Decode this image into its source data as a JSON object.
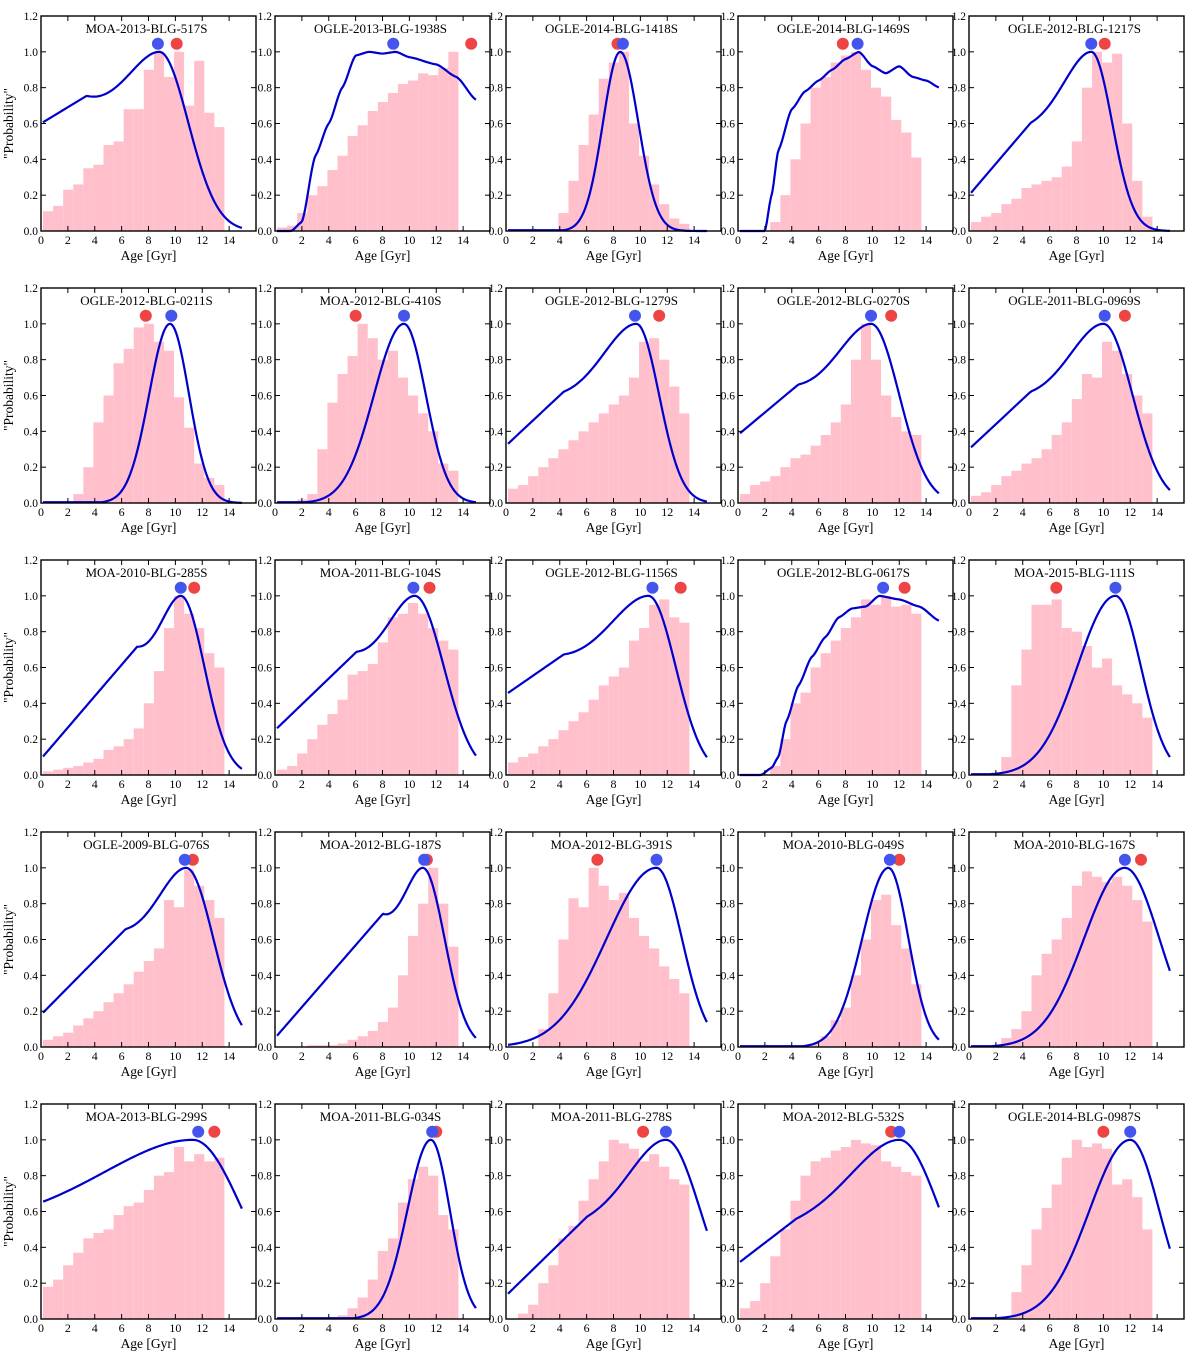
{
  "chart_data": {
    "type": "histogram-with-curve",
    "xlabel": "Age [Gyr]",
    "ylabel": "\"Probability\"",
    "xlim": [
      0,
      16
    ],
    "ylim": [
      0,
      1.2
    ],
    "xticks": [
      0,
      2,
      4,
      6,
      8,
      10,
      12,
      14
    ],
    "yticks": [
      0.0,
      0.2,
      0.4,
      0.6,
      0.8,
      1.0,
      1.2
    ],
    "bin_width": 0.75,
    "colors": {
      "histogram": "#ffc0cb",
      "curve": "#0000cd",
      "blue_marker": "#4455ee",
      "red_marker": "#ee4444"
    },
    "panels": [
      {
        "title": "MOA-2013-BLG-517S",
        "type": "skew",
        "peak": 8.8,
        "wl": 6,
        "wr": 3.2,
        "base": 0.0,
        "lk": 0.6,
        "hist": [
          0.11,
          0.14,
          0.23,
          0.26,
          0.35,
          0.37,
          0.48,
          0.5,
          0.68,
          0.68,
          0.9,
          1.0,
          0.86,
          1.0,
          0.7,
          0.95,
          0.66,
          0.58
        ],
        "blue": 8.7,
        "red": 10.1
      },
      {
        "title": "OGLE-2013-BLG-1938S",
        "type": "plateau",
        "p": [
          [
            1.2,
            0
          ],
          [
            2,
            0.05
          ],
          [
            3,
            0.42
          ],
          [
            4,
            0.6
          ],
          [
            5,
            0.8
          ],
          [
            6,
            0.98
          ],
          [
            7,
            1.0
          ],
          [
            8,
            0.99
          ],
          [
            9,
            1.0
          ],
          [
            10,
            0.97
          ],
          [
            12,
            0.93
          ],
          [
            13.5,
            0.86
          ],
          [
            15,
            0.73
          ]
        ],
        "hist": [
          0.02,
          0.03,
          0.1,
          0.2,
          0.25,
          0.34,
          0.42,
          0.53,
          0.59,
          0.67,
          0.72,
          0.77,
          0.82,
          0.84,
          0.88,
          0.87,
          0.91,
          1.0
        ],
        "blue": 8.8,
        "red": 14.6
      },
      {
        "title": "OGLE-2014-BLG-1418S",
        "type": "gauss",
        "peak": 8.5,
        "wl": 1.9,
        "wr": 2.0,
        "base": 0.0,
        "lk": 0.0,
        "hist": [
          0,
          0,
          0,
          0,
          0,
          0.1,
          0.28,
          0.48,
          0.65,
          0.85,
          0.94,
          1.0,
          0.6,
          0.42,
          0.26,
          0.15,
          0.07,
          0.04
        ],
        "blue": 8.7,
        "red": 8.3
      },
      {
        "title": "OGLE-2014-BLG-1469S",
        "type": "plateau",
        "p": [
          [
            2,
            0.0
          ],
          [
            2.5,
            0.2
          ],
          [
            3,
            0.45
          ],
          [
            4,
            0.68
          ],
          [
            5,
            0.78
          ],
          [
            6,
            0.84
          ],
          [
            7,
            0.9
          ],
          [
            8,
            0.96
          ],
          [
            9,
            1.0
          ],
          [
            10,
            0.92
          ],
          [
            11,
            0.88
          ],
          [
            12,
            0.92
          ],
          [
            13,
            0.86
          ],
          [
            14,
            0.84
          ],
          [
            15,
            0.8
          ]
        ],
        "hist": [
          0,
          0,
          0,
          0.05,
          0.2,
          0.4,
          0.6,
          0.8,
          0.86,
          0.94,
          0.98,
          1.0,
          0.9,
          0.8,
          0.75,
          0.62,
          0.55,
          0.41
        ],
        "blue": 8.9,
        "red": 7.8
      },
      {
        "title": "OGLE-2012-BLG-1217S",
        "type": "skew",
        "peak": 9.1,
        "wl": 5,
        "wr": 2.3,
        "base": 0.0,
        "lk": 0.2,
        "hist": [
          0.05,
          0.08,
          0.1,
          0.15,
          0.18,
          0.24,
          0.26,
          0.28,
          0.3,
          0.36,
          0.5,
          0.8,
          1.0,
          0.94,
          0.99,
          0.6,
          0.28,
          0.08
        ],
        "blue": 9.1,
        "red": 10.1
      },
      {
        "title": "OGLE-2012-BLG-0211S",
        "type": "gauss",
        "peak": 9.6,
        "wl": 2.3,
        "wr": 2.1,
        "base": 0.0,
        "lk": 0.0,
        "hist": [
          0,
          0,
          0,
          0.05,
          0.2,
          0.45,
          0.6,
          0.78,
          0.86,
          0.98,
          1.0,
          0.9,
          0.85,
          0.59,
          0.42,
          0.22,
          0.14,
          0.1
        ],
        "blue": 9.7,
        "red": 7.8
      },
      {
        "title": "MOA-2012-BLG-410S",
        "type": "skew",
        "peak": 9.6,
        "wl": 3.3,
        "wr": 2.4,
        "base": 0.0,
        "lk": 0.0,
        "hist": [
          0,
          0,
          0.02,
          0.05,
          0.3,
          0.56,
          0.72,
          0.82,
          1.0,
          0.92,
          0.8,
          0.85,
          0.7,
          0.6,
          0.5,
          0.4,
          0.22,
          0.18
        ],
        "blue": 9.6,
        "red": 6.0
      },
      {
        "title": "OGLE-2012-BLG-1279S",
        "type": "skew",
        "peak": 9.7,
        "wl": 6,
        "wr": 2.5,
        "base": 0.0,
        "lk": 0.32,
        "hist": [
          0.08,
          0.1,
          0.15,
          0.2,
          0.25,
          0.3,
          0.35,
          0.4,
          0.45,
          0.5,
          0.55,
          0.6,
          0.7,
          0.9,
          0.92,
          0.8,
          0.65,
          0.5
        ],
        "blue": 9.6,
        "red": 11.4
      },
      {
        "title": "OGLE-2012-BLG-0270S",
        "type": "skew",
        "peak": 9.9,
        "wl": 6,
        "wr": 3.1,
        "base": 0.0,
        "lk": 0.38,
        "hist": [
          0.05,
          0.1,
          0.12,
          0.15,
          0.2,
          0.25,
          0.27,
          0.32,
          0.38,
          0.45,
          0.55,
          0.8,
          1.0,
          0.8,
          0.6,
          0.48,
          0.4,
          0.38
        ],
        "blue": 9.9,
        "red": 11.4
      },
      {
        "title": "OGLE-2011-BLG-0969S",
        "type": "skew",
        "peak": 10.0,
        "wl": 6,
        "wr": 3.2,
        "base": 0.0,
        "lk": 0.3,
        "hist": [
          0.04,
          0.06,
          0.1,
          0.15,
          0.18,
          0.22,
          0.25,
          0.3,
          0.38,
          0.45,
          0.58,
          0.72,
          0.7,
          0.9,
          0.85,
          0.72,
          0.6,
          0.5
        ],
        "blue": 10.1,
        "red": 11.6
      },
      {
        "title": "MOA-2010-BLG-285S",
        "type": "skew",
        "peak": 10.4,
        "wl": 3.6,
        "wr": 2.6,
        "base": 0.0,
        "lk": 0.09,
        "hist": [
          0.02,
          0.03,
          0.04,
          0.05,
          0.07,
          0.09,
          0.14,
          0.16,
          0.2,
          0.26,
          0.4,
          0.58,
          0.82,
          1.0,
          0.9,
          0.82,
          0.68,
          0.6
        ],
        "blue": 10.4,
        "red": 11.4
      },
      {
        "title": "MOA-2011-BLG-104S",
        "type": "skew",
        "peak": 10.4,
        "wl": 4.8,
        "wr": 3.2,
        "base": 0.0,
        "lk": 0.25,
        "hist": [
          0.03,
          0.05,
          0.12,
          0.2,
          0.28,
          0.34,
          0.42,
          0.56,
          0.58,
          0.62,
          0.74,
          0.88,
          0.9,
          0.96,
          0.9,
          0.82,
          0.75,
          0.7
        ],
        "blue": 10.3,
        "red": 11.5
      },
      {
        "title": "OGLE-2012-BLG-1156S",
        "type": "skew",
        "peak": 10.6,
        "wl": 7,
        "wr": 3.0,
        "base": 0.0,
        "lk": 0.45,
        "hist": [
          0.07,
          0.1,
          0.12,
          0.16,
          0.2,
          0.25,
          0.3,
          0.35,
          0.42,
          0.5,
          0.55,
          0.6,
          0.75,
          0.82,
          0.95,
          0.98,
          0.88,
          0.85
        ],
        "blue": 10.9,
        "red": 13.0
      },
      {
        "title": "OGLE-2012-BLG-0617S",
        "type": "plateau",
        "p": [
          [
            1.7,
            0
          ],
          [
            2.5,
            0.04
          ],
          [
            3,
            0.1
          ],
          [
            3.6,
            0.3
          ],
          [
            4.5,
            0.5
          ],
          [
            5.5,
            0.66
          ],
          [
            6.5,
            0.77
          ],
          [
            7.5,
            0.88
          ],
          [
            8.5,
            0.93
          ],
          [
            9.5,
            0.94
          ],
          [
            10.5,
            1.0
          ],
          [
            12,
            0.98
          ],
          [
            13.5,
            0.94
          ],
          [
            15,
            0.86
          ]
        ],
        "hist": [
          0,
          0,
          0,
          0.05,
          0.2,
          0.4,
          0.46,
          0.6,
          0.68,
          0.75,
          0.82,
          0.88,
          0.98,
          0.95,
          1.0,
          0.94,
          0.95,
          0.9
        ],
        "blue": 10.8,
        "red": 12.4
      },
      {
        "title": "MOA-2015-BLG-111S",
        "type": "skew",
        "peak": 10.9,
        "wl": 4.2,
        "wr": 2.8,
        "base": 0.0,
        "lk": 0.0,
        "hist": [
          0,
          0,
          0,
          0.1,
          0.5,
          0.7,
          0.95,
          0.95,
          0.98,
          0.82,
          0.8,
          0.72,
          0.6,
          0.65,
          0.5,
          0.45,
          0.4,
          0.32
        ],
        "blue": 10.9,
        "red": 6.5
      },
      {
        "title": "OGLE-2009-BLG-076S",
        "type": "skew",
        "peak": 10.8,
        "wl": 5,
        "wr": 3.0,
        "base": 0.0,
        "lk": 0.18,
        "hist": [
          0.04,
          0.06,
          0.08,
          0.12,
          0.16,
          0.2,
          0.25,
          0.3,
          0.35,
          0.42,
          0.48,
          0.55,
          0.82,
          0.78,
          0.99,
          0.9,
          0.82,
          0.72
        ],
        "blue": 10.7,
        "red": 11.3
      },
      {
        "title": "MOA-2012-BLG-187S",
        "type": "skew",
        "peak": 11.0,
        "wl": 3.3,
        "wr": 2.4,
        "base": 0.0,
        "lk": 0.05,
        "hist": [
          0,
          0,
          0,
          0.01,
          0.01,
          0.01,
          0.02,
          0.04,
          0.06,
          0.09,
          0.14,
          0.22,
          0.4,
          0.62,
          0.8,
          1.0,
          0.8,
          0.56
        ],
        "blue": 11.1,
        "red": 11.3
      },
      {
        "title": "MOA-2012-BLG-391S",
        "type": "skew",
        "peak": 11.2,
        "wl": 5.5,
        "wr": 2.8,
        "base": 0.0,
        "lk": 0.0,
        "hist": [
          0,
          0,
          0,
          0.1,
          0.3,
          0.6,
          0.83,
          0.78,
          1.0,
          0.9,
          0.82,
          0.86,
          0.72,
          0.62,
          0.55,
          0.45,
          0.38,
          0.3
        ],
        "blue": 11.2,
        "red": 6.8
      },
      {
        "title": "MOA-2010-BLG-049S",
        "type": "skew",
        "peak": 11.2,
        "wl": 2.9,
        "wr": 2.2,
        "base": 0.0,
        "lk": 0.0,
        "hist": [
          0,
          0,
          0,
          0,
          0,
          0,
          0,
          0.02,
          0.06,
          0.15,
          0.22,
          0.4,
          0.6,
          0.82,
          0.85,
          0.68,
          0.55,
          0.35
        ],
        "blue": 11.3,
        "red": 12.0
      },
      {
        "title": "MOA-2010-BLG-167S",
        "type": "skew",
        "peak": 11.6,
        "wl": 4.5,
        "wr": 3.8,
        "base": 0.0,
        "lk": 0.0,
        "hist": [
          0,
          0,
          0,
          0.05,
          0.1,
          0.2,
          0.4,
          0.52,
          0.6,
          0.72,
          0.9,
          0.98,
          0.95,
          0.92,
          0.95,
          0.9,
          0.82,
          0.7
        ],
        "blue": 11.6,
        "red": 12.8
      },
      {
        "title": "MOA-2013-BLG-299S",
        "type": "skew",
        "peak": 11.3,
        "wl": 16,
        "wr": 5.5,
        "base": 0.0,
        "lk": 0.67,
        "hist": [
          0.18,
          0.22,
          0.3,
          0.37,
          0.45,
          0.48,
          0.5,
          0.58,
          0.63,
          0.65,
          0.72,
          0.8,
          0.82,
          0.96,
          0.88,
          0.92,
          0.88,
          0.9
        ],
        "blue": 11.7,
        "red": 12.9
      },
      {
        "title": "MOA-2011-BLG-034S",
        "type": "skew",
        "peak": 11.6,
        "wl": 2.6,
        "wr": 2.1,
        "base": 0.0,
        "lk": 0.0,
        "hist": [
          0,
          0,
          0,
          0,
          0,
          0,
          0.02,
          0.06,
          0.12,
          0.22,
          0.38,
          0.45,
          0.65,
          0.78,
          0.85,
          0.8,
          0.58,
          0.5
        ],
        "blue": 11.7,
        "red": 12.0
      },
      {
        "title": "MOA-2011-BLG-278S",
        "type": "skew",
        "peak": 11.9,
        "wl": 6.5,
        "wr": 3.8,
        "base": 0.0,
        "lk": 0.13,
        "hist": [
          0,
          0.03,
          0.08,
          0.2,
          0.3,
          0.45,
          0.52,
          0.66,
          0.78,
          0.88,
          1.0,
          0.98,
          0.95,
          0.88,
          0.92,
          0.85,
          0.78,
          0.75
        ],
        "blue": 11.9,
        "red": 10.2
      },
      {
        "title": "MOA-2012-BLG-532S",
        "type": "skew",
        "peak": 12.0,
        "wl": 8.5,
        "wr": 4.5,
        "base": 0.0,
        "lk": 0.31,
        "hist": [
          0.06,
          0.1,
          0.2,
          0.35,
          0.5,
          0.66,
          0.8,
          0.88,
          0.9,
          0.94,
          0.96,
          1.0,
          0.98,
          0.97,
          0.88,
          0.85,
          0.82,
          0.8
        ],
        "blue": 12.0,
        "red": 11.4
      },
      {
        "title": "OGLE-2014-BLG-0987S",
        "type": "skew",
        "peak": 12.0,
        "wl": 4.5,
        "wr": 3.2,
        "base": 0.0,
        "lk": 0.0,
        "hist": [
          0,
          0,
          0,
          0,
          0.15,
          0.3,
          0.5,
          0.62,
          0.75,
          0.9,
          1.0,
          0.96,
          0.98,
          0.95,
          0.75,
          0.78,
          0.68,
          0.5
        ],
        "blue": 12.0,
        "red": 10.0
      }
    ]
  }
}
